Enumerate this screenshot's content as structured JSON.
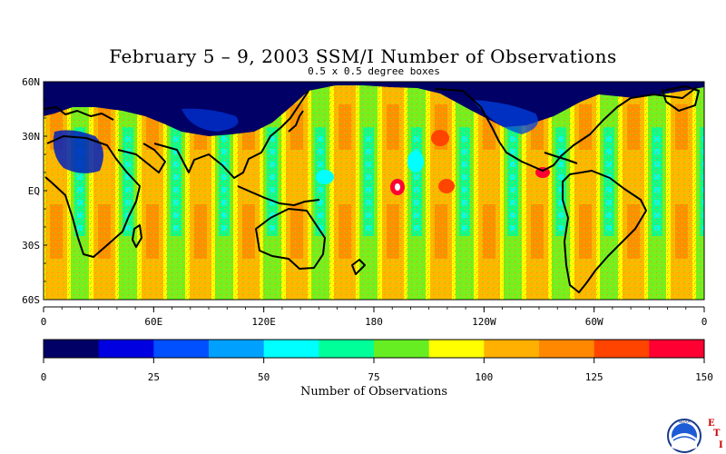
{
  "title": "February 5 – 9, 2003 SSM/I Number of Observations",
  "subtitle": "0.5 x 0.5 degree boxes",
  "map": {
    "lat_labels": [
      "60N",
      "30N",
      "EQ",
      "30S",
      "60S"
    ],
    "lon_labels": [
      "0",
      "60E",
      "120E",
      "180",
      "120W",
      "60W",
      "0"
    ]
  },
  "colorbar": {
    "label": "Number of Observations",
    "tick_labels": [
      "0",
      "25",
      "50",
      "75",
      "100",
      "125",
      "150"
    ],
    "colors": [
      "#000066",
      "#0000e0",
      "#0050ff",
      "#00a0ff",
      "#00ffff",
      "#00ff99",
      "#66ee22",
      "#ffff00",
      "#ffb000",
      "#ff8800",
      "#ff4400",
      "#ff0033"
    ]
  },
  "logo": {
    "org": "NOAA",
    "letters": [
      "E",
      "T",
      "I"
    ]
  }
}
